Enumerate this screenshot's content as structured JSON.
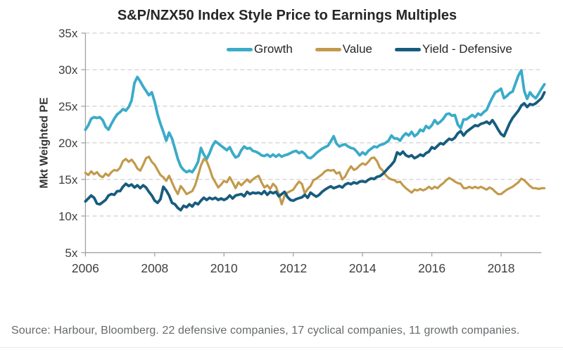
{
  "source_note": "Source: Harbour, Bloomberg. 22 defensive companies, 17 cyclical companies, 11 growth companies.",
  "chart_data": {
    "type": "line",
    "title": "S&P/NZX50 Index Style Price to Earnings Multiples",
    "xlabel": "",
    "ylabel": "Mkt Weighted PE",
    "ylim": [
      5,
      35
    ],
    "y_ticks": [
      35,
      30,
      25,
      20,
      15,
      10,
      5
    ],
    "y_tick_suffix": "x",
    "x_start_year": 2006,
    "x_step_months": 1,
    "x_end": 2019.25,
    "x_tick_years": [
      2006,
      2008,
      2010,
      2012,
      2014,
      2016,
      2018
    ],
    "grid": "horizontal-dashed",
    "legend_position": "top-inside",
    "colors": {
      "grid": "#c4c4c4",
      "axis": "#a3a3a3",
      "tick_label": "#3f3f3f",
      "title": "#262626",
      "source": "#666a6d"
    },
    "series": [
      {
        "name": "Growth",
        "color": "#3aabc9",
        "width": 3.8,
        "values": [
          21.8,
          22.4,
          23.3,
          23.5,
          23.4,
          23.5,
          23.1,
          22.2,
          21.8,
          22.6,
          23.3,
          23.9,
          24.2,
          24.6,
          24.4,
          24.9,
          25.8,
          28.2,
          29.0,
          28.4,
          27.7,
          27.1,
          26.5,
          26.9,
          25.6,
          23.9,
          22.6,
          21.5,
          20.3,
          21.4,
          20.6,
          19.2,
          17.8,
          16.8,
          16.3,
          16.0,
          16.2,
          16.0,
          16.6,
          17.4,
          19.3,
          18.4,
          17.8,
          18.6,
          19.6,
          20.2,
          19.9,
          19.6,
          19.3,
          19.0,
          19.4,
          18.6,
          18.0,
          18.2,
          19.0,
          19.5,
          19.2,
          19.3,
          18.9,
          18.8,
          18.6,
          18.3,
          18.2,
          18.4,
          18.1,
          18.4,
          18.1,
          18.4,
          18.1,
          18.3,
          18.4,
          18.6,
          18.8,
          18.9,
          18.6,
          18.8,
          18.5,
          18.0,
          17.9,
          18.2,
          18.6,
          18.9,
          19.2,
          19.4,
          19.6,
          20.2,
          20.9,
          19.9,
          19.5,
          19.7,
          19.8,
          19.5,
          19.3,
          19.2,
          18.8,
          18.3,
          18.7,
          18.4,
          18.9,
          19.2,
          19.5,
          19.4,
          19.7,
          19.8,
          20.0,
          20.3,
          21.0,
          20.6,
          20.6,
          20.3,
          20.9,
          21.3,
          21.0,
          21.5,
          20.9,
          21.2,
          21.8,
          21.6,
          22.3,
          22.0,
          22.4,
          23.1,
          22.6,
          22.9,
          23.3,
          23.9,
          24.0,
          23.7,
          23.8,
          22.5,
          22.0,
          23.2,
          23.2,
          23.5,
          23.8,
          23.5,
          24.0,
          23.8,
          24.2,
          24.5,
          25.4,
          26.2,
          26.9,
          27.1,
          27.4,
          26.1,
          26.4,
          26.8,
          27.0,
          28.1,
          29.2,
          29.9,
          27.1,
          26.0,
          26.9,
          26.4,
          26.1,
          26.7,
          27.4,
          28.0
        ]
      },
      {
        "name": "Value",
        "color": "#c29a4b",
        "width": 3.2,
        "values": [
          15.9,
          15.6,
          16.1,
          15.7,
          16.0,
          15.5,
          15.3,
          15.8,
          15.5,
          16.0,
          16.3,
          16.2,
          16.6,
          17.5,
          17.8,
          17.4,
          17.7,
          17.2,
          16.5,
          16.2,
          17.0,
          17.9,
          18.1,
          17.4,
          17.0,
          16.3,
          15.6,
          15.3,
          14.8,
          15.5,
          14.6,
          13.7,
          13.0,
          14.1,
          13.6,
          13.0,
          13.2,
          13.4,
          14.2,
          15.5,
          16.9,
          17.8,
          17.5,
          16.5,
          15.3,
          14.6,
          13.9,
          14.3,
          14.8,
          14.6,
          15.3,
          14.6,
          13.8,
          14.6,
          14.2,
          14.6,
          15.0,
          14.6,
          15.0,
          15.3,
          15.5,
          14.6,
          13.9,
          14.2,
          13.7,
          14.4,
          14.0,
          13.0,
          11.6,
          12.8,
          13.2,
          13.4,
          13.6,
          14.2,
          14.7,
          14.4,
          13.1,
          13.7,
          14.1,
          14.9,
          15.1,
          15.4,
          15.7,
          16.1,
          16.3,
          16.2,
          16.3,
          15.8,
          16.0,
          15.0,
          15.4,
          16.2,
          16.8,
          16.3,
          16.5,
          16.9,
          17.2,
          17.0,
          17.4,
          17.9,
          18.0,
          17.5,
          16.6,
          16.2,
          15.6,
          15.2,
          15.0,
          14.9,
          14.6,
          14.7,
          14.2,
          13.8,
          13.5,
          13.2,
          13.6,
          13.5,
          13.7,
          13.5,
          13.7,
          14.0,
          13.7,
          14.0,
          13.8,
          14.2,
          14.5,
          14.9,
          15.2,
          15.0,
          14.7,
          14.5,
          14.4,
          13.8,
          13.8,
          14.0,
          13.8,
          14.0,
          13.8,
          14.0,
          13.8,
          13.6,
          13.9,
          13.7,
          13.3,
          13.0,
          13.0,
          13.3,
          13.6,
          13.8,
          14.0,
          14.3,
          14.6,
          15.1,
          14.9,
          14.5,
          14.1,
          13.8,
          13.8,
          13.7,
          13.8,
          13.8
        ]
      },
      {
        "name": "Yield - Defensive",
        "color": "#175c7e",
        "width": 3.8,
        "values": [
          12.0,
          12.4,
          12.8,
          12.5,
          11.7,
          11.6,
          11.9,
          12.2,
          12.8,
          13.0,
          12.9,
          13.4,
          13.4,
          14.0,
          14.4,
          14.1,
          14.3,
          13.9,
          14.2,
          13.8,
          14.2,
          13.9,
          13.3,
          12.8,
          12.1,
          11.8,
          12.3,
          14.0,
          13.5,
          12.8,
          11.8,
          11.6,
          11.1,
          10.8,
          11.4,
          11.2,
          11.6,
          11.3,
          11.8,
          11.6,
          12.1,
          12.5,
          12.2,
          12.5,
          12.3,
          12.5,
          12.2,
          12.4,
          12.2,
          12.4,
          12.8,
          12.4,
          12.8,
          12.9,
          13.0,
          12.7,
          13.3,
          13.0,
          13.2,
          13.1,
          13.2,
          13.0,
          13.4,
          12.9,
          13.3,
          13.1,
          13.3,
          12.7,
          13.0,
          13.3,
          12.6,
          12.2,
          12.1,
          12.3,
          12.45,
          12.55,
          12.9,
          12.5,
          13.2,
          12.9,
          12.65,
          12.9,
          13.3,
          13.6,
          13.85,
          14.05,
          13.8,
          13.95,
          14.1,
          13.9,
          14.3,
          14.5,
          14.35,
          14.6,
          14.45,
          14.7,
          14.75,
          14.65,
          14.95,
          15.15,
          15.05,
          15.35,
          15.45,
          15.75,
          16.15,
          16.6,
          17.0,
          17.5,
          18.7,
          18.4,
          18.8,
          18.3,
          18.1,
          18.3,
          17.9,
          18.1,
          18.4,
          18.2,
          18.6,
          18.8,
          19.4,
          19.2,
          19.6,
          19.95,
          19.8,
          20.2,
          20.55,
          20.4,
          20.7,
          21.3,
          21.6,
          21.0,
          21.5,
          21.8,
          22.1,
          22.4,
          22.3,
          22.6,
          22.7,
          22.9,
          22.6,
          23.1,
          22.5,
          21.8,
          21.2,
          20.9,
          21.8,
          22.7,
          23.4,
          23.9,
          24.4,
          25.1,
          25.4,
          24.9,
          25.3,
          25.2,
          25.4,
          25.75,
          26.1,
          26.9
        ]
      }
    ]
  }
}
